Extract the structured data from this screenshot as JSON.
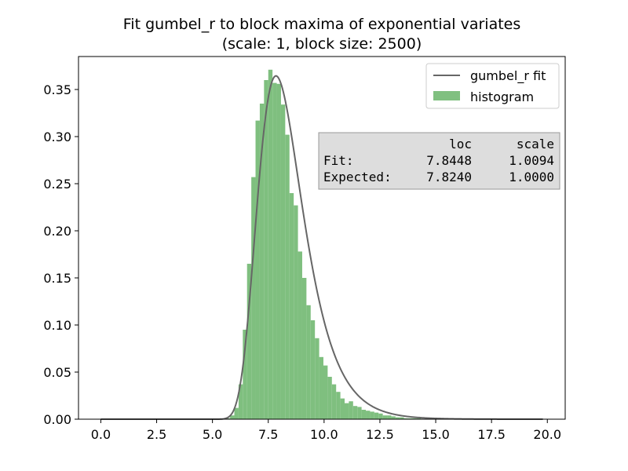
{
  "chart_data": {
    "type": "bar",
    "title_lines": [
      "Fit gumbel_r to block maxima of exponential variates",
      "(scale: 1, block size: 2500)"
    ],
    "xlabel": "",
    "ylabel": "",
    "xlim": [
      -1.0,
      20.8
    ],
    "ylim": [
      0,
      0.385
    ],
    "x_ticks": [
      0.0,
      2.5,
      5.0,
      7.5,
      10.0,
      12.5,
      15.0,
      17.5,
      20.0
    ],
    "x_tick_labels": [
      "0.0",
      "2.5",
      "5.0",
      "7.5",
      "10.0",
      "12.5",
      "15.0",
      "17.5",
      "20.0"
    ],
    "y_ticks": [
      0.0,
      0.05,
      0.1,
      0.15,
      0.2,
      0.25,
      0.3,
      0.35
    ],
    "y_tick_labels": [
      "0.00",
      "0.05",
      "0.10",
      "0.15",
      "0.20",
      "0.25",
      "0.30",
      "0.35"
    ],
    "grid": false,
    "legend": {
      "placement": "top-right",
      "entries": [
        {
          "label": "gumbel_r fit",
          "kind": "line",
          "color": "#666666"
        },
        {
          "label": "histogram",
          "kind": "patch",
          "color": "#80c080"
        }
      ]
    },
    "series": [
      {
        "name": "histogram",
        "kind": "histogram",
        "color": "#7fbf7f",
        "bin_width": 0.19,
        "bin_left_edges": [
          5.6,
          5.79,
          5.98,
          6.17,
          6.36,
          6.55,
          6.74,
          6.93,
          7.12,
          7.31,
          7.5,
          7.69,
          7.88,
          8.07,
          8.26,
          8.45,
          8.64,
          8.83,
          9.02,
          9.21,
          9.4,
          9.59,
          9.78,
          9.97,
          10.16,
          10.35,
          10.54,
          10.73,
          10.92,
          11.11,
          11.3,
          11.49,
          11.68,
          11.87,
          12.06,
          12.25,
          12.44,
          12.63,
          12.82,
          13.01,
          13.2,
          13.39,
          13.58,
          13.77,
          13.96,
          14.15
        ],
        "values": [
          0.001,
          0.004,
          0.012,
          0.037,
          0.095,
          0.165,
          0.257,
          0.317,
          0.335,
          0.36,
          0.371,
          0.357,
          0.356,
          0.334,
          0.302,
          0.24,
          0.227,
          0.178,
          0.15,
          0.121,
          0.105,
          0.086,
          0.066,
          0.057,
          0.045,
          0.037,
          0.029,
          0.022,
          0.017,
          0.019,
          0.014,
          0.013,
          0.01,
          0.009,
          0.008,
          0.007,
          0.006,
          0.004,
          0.004,
          0.003,
          0.002,
          0.002,
          0.001,
          0.001,
          0.001,
          0.001
        ]
      },
      {
        "name": "gumbel_r fit",
        "kind": "pdf_line",
        "color": "#666666",
        "loc": 7.8448,
        "scale": 1.0094,
        "x_range": [
          0.0,
          19.8
        ]
      }
    ]
  },
  "fit_table": {
    "header": [
      "",
      "loc",
      "scale"
    ],
    "rows": [
      {
        "label": "Fit:",
        "loc": "7.8448",
        "scale": "1.0094"
      },
      {
        "label": "Expected:",
        "loc": "7.8240",
        "scale": "1.0000"
      }
    ]
  }
}
